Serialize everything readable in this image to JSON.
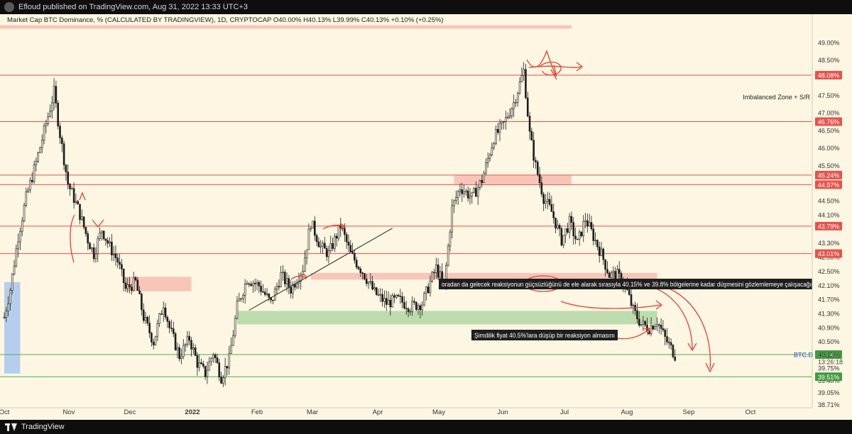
{
  "header": {
    "publisher_line": "Efloud published on TradingView.com, Aug 31, 2022 13:33 UTC+3"
  },
  "legend": {
    "text": "Market Cap BTC Dominance, % (CALCULATED BY TRADINGVIEW), 1D, CRYPTOCAP  O40.00%  H40.13%  L39.99%  C40.13%  +0.10% (+0.25%)"
  },
  "footer": {
    "brand": "TradingView"
  },
  "colors": {
    "background": "#fcf6e2",
    "candle": "#1c1c1c",
    "resistance": "#e8524a",
    "support_zone": "#a9d19b",
    "resistance_zone": "#f5b6aa",
    "blue_zone": "#a9c7ee",
    "green_label": "#3f9a3f",
    "red_label": "#e8524a",
    "annotation_bg": "#1e1e1e",
    "drawing": "#e8402f"
  },
  "chart_data": {
    "type": "candlestick",
    "title": "",
    "ylabel": "",
    "ylim": [
      38.71,
      49.45
    ],
    "y_scale": "linear",
    "yticks": [
      "49.00%",
      "48.50%",
      "47.50%",
      "47.00%",
      "46.50%",
      "46.00%",
      "45.50%",
      "44.50%",
      "44.10%",
      "43.30%",
      "42.90%",
      "42.50%",
      "42.10%",
      "41.70%",
      "41.30%",
      "40.90%",
      "40.50%",
      "39.75%",
      "39.40%",
      "39.05%",
      "38.71%"
    ],
    "xticks": [
      "Oct",
      "Nov",
      "Dec",
      "2022",
      "Feb",
      "Mar",
      "Apr",
      "May",
      "Jun",
      "Jul",
      "Aug",
      "Sep",
      "Oct"
    ],
    "grid": false,
    "price_levels": [
      {
        "value": 48.08,
        "label": "48.08%",
        "kind": "resistance"
      },
      {
        "value": 46.76,
        "label": "46.76%",
        "kind": "resistance"
      },
      {
        "value": 45.24,
        "label": "45.24%",
        "kind": "resistance"
      },
      {
        "value": 44.97,
        "label": "44.97%",
        "kind": "resistance"
      },
      {
        "value": 43.79,
        "label": "43.79%",
        "kind": "resistance"
      },
      {
        "value": 43.01,
        "label": "43.01%",
        "kind": "resistance"
      },
      {
        "value": 40.14,
        "label": "40.14%",
        "kind": "support"
      },
      {
        "value": 39.51,
        "label": "39.51%",
        "kind": "support"
      }
    ],
    "current_price": {
      "symbol": "BTC.D",
      "value": "40.13%",
      "countdown": "13:26:18"
    },
    "zones": [
      {
        "kind": "resistance",
        "x": [
          "Sep 1, 2021",
          "Jul 10, 2022"
        ],
        "y": [
          49.5,
          49.4
        ]
      },
      {
        "kind": "resistance",
        "x": [
          "Nov 28, 2021",
          "Dec 31, 2021"
        ],
        "y": [
          41.94,
          42.35
        ]
      },
      {
        "kind": "resistance",
        "x": [
          "Mar 1, 2022",
          "Aug 22, 2022"
        ],
        "y": [
          42.27,
          42.46
        ]
      },
      {
        "kind": "resistance",
        "x": [
          "May 12, 2022",
          "Jul 10, 2022"
        ],
        "y": [
          44.98,
          45.23
        ]
      },
      {
        "kind": "support",
        "x": [
          "Jan 23, 2022",
          "Aug 22, 2022"
        ],
        "y": [
          41.0,
          41.38
        ]
      },
      {
        "kind": "blue",
        "x": [
          "Sep 28, 2021",
          "Oct 6, 2021"
        ],
        "y": [
          39.6,
          42.2
        ]
      }
    ],
    "annotations": [
      {
        "text": "Imbalanced Zone + S/R"
      },
      {
        "text": "oradan da gelecek reaksiyonun güçsüzlüğünü de ele alarak sırasıyla 40.15% ve 39.8% bölgelerine kadar düşmesini gözlemlemeye çalışacağım."
      },
      {
        "text": "Şimdilik fiyat 40.5%'lara düşüp bir reaksiyon almasını"
      }
    ],
    "trendline": {
      "from": {
        "date": "Jan 29, 2022",
        "value": 41.4
      },
      "to": {
        "date": "Apr 11, 2022",
        "value": 43.73
      }
    },
    "ohlc_path": [
      {
        "date": "Sep 28, 2021",
        "value": 41.2
      },
      {
        "date": "Oct 1, 2021",
        "value": 42.0
      },
      {
        "date": "Oct 5, 2021",
        "value": 43.5
      },
      {
        "date": "Oct 9, 2021",
        "value": 44.6
      },
      {
        "date": "Oct 14, 2021",
        "value": 45.6
      },
      {
        "date": "Oct 19, 2021",
        "value": 46.7
      },
      {
        "date": "Oct 23, 2021",
        "value": 47.6
      },
      {
        "date": "Oct 26, 2021",
        "value": 46.4
      },
      {
        "date": "Oct 30, 2021",
        "value": 45.0
      },
      {
        "date": "Nov 4, 2021",
        "value": 44.3
      },
      {
        "date": "Nov 9, 2021",
        "value": 43.4
      },
      {
        "date": "Nov 12, 2021",
        "value": 43.0
      },
      {
        "date": "Nov 16, 2021",
        "value": 43.7
      },
      {
        "date": "Nov 20, 2021",
        "value": 43.2
      },
      {
        "date": "Nov 24, 2021",
        "value": 42.8
      },
      {
        "date": "Nov 28, 2021",
        "value": 42.0
      },
      {
        "date": "Dec 3, 2021",
        "value": 42.2
      },
      {
        "date": "Dec 7, 2021",
        "value": 41.2
      },
      {
        "date": "Dec 12, 2021",
        "value": 40.5
      },
      {
        "date": "Dec 17, 2021",
        "value": 41.6
      },
      {
        "date": "Dec 20, 2021",
        "value": 40.9
      },
      {
        "date": "Dec 25, 2021",
        "value": 40.1
      },
      {
        "date": "Dec 30, 2021",
        "value": 40.6
      },
      {
        "date": "Jan 3, 2022",
        "value": 39.9
      },
      {
        "date": "Jan 7, 2022",
        "value": 39.6
      },
      {
        "date": "Jan 11, 2022",
        "value": 40.2
      },
      {
        "date": "Jan 15, 2022",
        "value": 39.5
      },
      {
        "date": "Jan 19, 2022",
        "value": 40.0
      },
      {
        "date": "Jan 23, 2022",
        "value": 41.5
      },
      {
        "date": "Jan 28, 2022",
        "value": 42.3
      },
      {
        "date": "Feb 3, 2022",
        "value": 42.1
      },
      {
        "date": "Feb 9, 2022",
        "value": 41.6
      },
      {
        "date": "Feb 14, 2022",
        "value": 42.4
      },
      {
        "date": "Feb 19, 2022",
        "value": 42.0
      },
      {
        "date": "Feb 25, 2022",
        "value": 42.6
      },
      {
        "date": "Mar 1, 2022",
        "value": 43.9
      },
      {
        "date": "Mar 6, 2022",
        "value": 43.2
      },
      {
        "date": "Mar 10, 2022",
        "value": 43.0
      },
      {
        "date": "Mar 16, 2022",
        "value": 43.8
      },
      {
        "date": "Mar 21, 2022",
        "value": 43.0
      },
      {
        "date": "Mar 27, 2022",
        "value": 42.5
      },
      {
        "date": "Apr 2, 2022",
        "value": 41.9
      },
      {
        "date": "Apr 8, 2022",
        "value": 41.6
      },
      {
        "date": "Apr 14, 2022",
        "value": 41.7
      },
      {
        "date": "Apr 20, 2022",
        "value": 41.5
      },
      {
        "date": "Apr 26, 2022",
        "value": 41.6
      },
      {
        "date": "Apr 30, 2022",
        "value": 42.2
      },
      {
        "date": "May 3, 2022",
        "value": 42.6
      },
      {
        "date": "May 7, 2022",
        "value": 42.1
      },
      {
        "date": "May 11, 2022",
        "value": 44.3
      },
      {
        "date": "May 15, 2022",
        "value": 44.9
      },
      {
        "date": "May 21, 2022",
        "value": 44.6
      },
      {
        "date": "May 26, 2022",
        "value": 45.1
      },
      {
        "date": "Jun 1, 2022",
        "value": 46.3
      },
      {
        "date": "Jun 6, 2022",
        "value": 46.7
      },
      {
        "date": "Jun 11, 2022",
        "value": 47.3
      },
      {
        "date": "Jun 16, 2022",
        "value": 48.2
      },
      {
        "date": "Jun 19, 2022",
        "value": 46.4
      },
      {
        "date": "Jun 22, 2022",
        "value": 45.5
      },
      {
        "date": "Jun 26, 2022",
        "value": 44.6
      },
      {
        "date": "Jun 30, 2022",
        "value": 44.2
      },
      {
        "date": "Jul 5, 2022",
        "value": 43.4
      },
      {
        "date": "Jul 9, 2022",
        "value": 43.9
      },
      {
        "date": "Jul 13, 2022",
        "value": 43.3
      },
      {
        "date": "Jul 17, 2022",
        "value": 44.0
      },
      {
        "date": "Jul 21, 2022",
        "value": 43.5
      },
      {
        "date": "Jul 25, 2022",
        "value": 43.0
      },
      {
        "date": "Jul 29, 2022",
        "value": 42.4
      },
      {
        "date": "Aug 2, 2022",
        "value": 42.4
      },
      {
        "date": "Aug 6, 2022",
        "value": 42.1
      },
      {
        "date": "Aug 10, 2022",
        "value": 41.4
      },
      {
        "date": "Aug 14, 2022",
        "value": 41.0
      },
      {
        "date": "Aug 18, 2022",
        "value": 40.9
      },
      {
        "date": "Aug 22, 2022",
        "value": 41.1
      },
      {
        "date": "Aug 26, 2022",
        "value": 40.6
      },
      {
        "date": "Aug 31, 2022",
        "value": 40.13
      }
    ]
  }
}
